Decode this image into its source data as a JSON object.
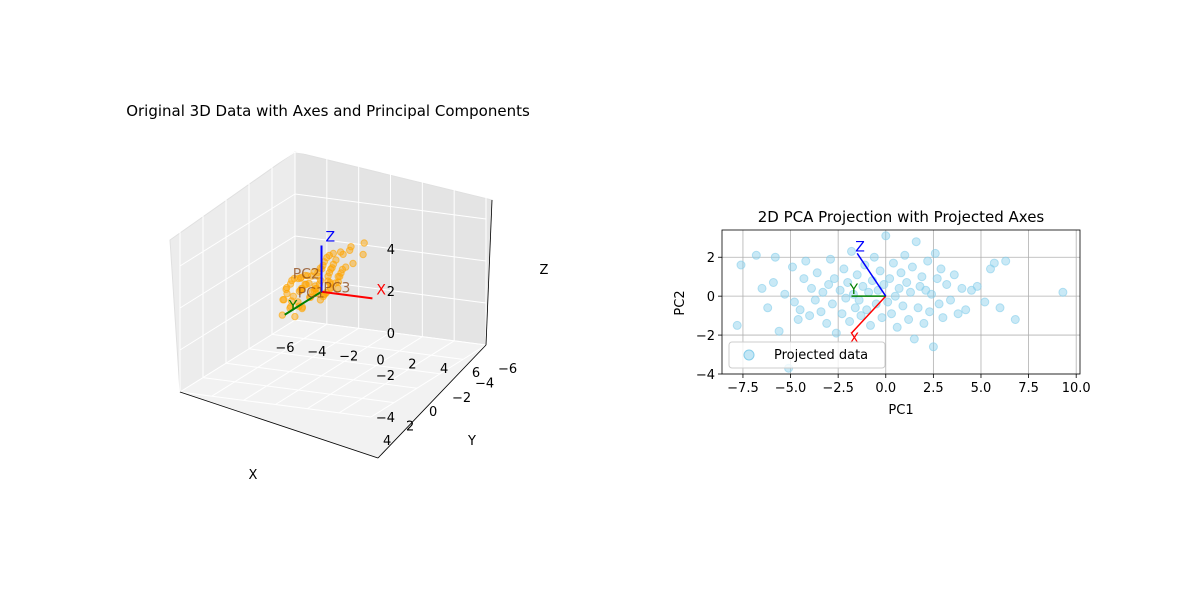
{
  "figure": {
    "background": "#ffffff"
  },
  "chart_data": [
    {
      "type": "scatter",
      "projection": "3d",
      "title": "Original 3D Data with Axes and Principal Components",
      "xlabel": "X",
      "ylabel": "Y",
      "zlabel": "Z",
      "xlim": [
        -6,
        6
      ],
      "ylim": [
        -6,
        4
      ],
      "zlim": [
        -4,
        4
      ],
      "xticks": [
        "−6",
        "−4",
        "−2",
        "0",
        "2",
        "4",
        "6"
      ],
      "yticks": [
        "−6",
        "−4",
        "−2",
        "0",
        "2",
        "4"
      ],
      "zticks": [
        "−4",
        "−2",
        "0",
        "2",
        "4"
      ],
      "grid": true,
      "series": [
        {
          "marker_color": "#ffa500",
          "points": [
            [
              -5.5,
              -4.2,
              -3.1
            ],
            [
              -4.8,
              -3.9,
              -2.6
            ],
            [
              -4.6,
              -3.1,
              -1.9
            ],
            [
              -4.3,
              -2.6,
              -1.7
            ],
            [
              -4.2,
              -3.5,
              -2.8
            ],
            [
              -3.9,
              -2.4,
              -1.3
            ],
            [
              -3.8,
              -3.3,
              -2.2
            ],
            [
              -3.6,
              -1.9,
              -0.9
            ],
            [
              -3.5,
              -2.8,
              -1.8
            ],
            [
              -3.4,
              -2.1,
              -1.5
            ],
            [
              -3.2,
              -1.4,
              -0.6
            ],
            [
              -3.1,
              -2.6,
              -2.0
            ],
            [
              -3.0,
              -1.7,
              -1.1
            ],
            [
              -2.9,
              -2.2,
              -0.4
            ],
            [
              -2.8,
              -1.2,
              -1.4
            ],
            [
              -2.7,
              -2.0,
              -0.8
            ],
            [
              -2.6,
              -0.9,
              -0.2
            ],
            [
              -2.5,
              -1.8,
              -1.6
            ],
            [
              -2.4,
              -1.4,
              -0.7
            ],
            [
              -2.3,
              -0.6,
              0.1
            ],
            [
              -2.2,
              -2.1,
              -1.2
            ],
            [
              -2.1,
              -1.1,
              -0.5
            ],
            [
              -2.0,
              -0.4,
              0.3
            ],
            [
              -1.9,
              -1.6,
              -1.0
            ],
            [
              -1.8,
              -0.8,
              -0.3
            ],
            [
              -1.7,
              -1.9,
              -0.9
            ],
            [
              -1.6,
              -0.2,
              0.4
            ],
            [
              -1.5,
              -1.3,
              -0.6
            ],
            [
              -1.4,
              -0.6,
              0.0
            ],
            [
              -1.3,
              -1.7,
              -1.1
            ],
            [
              -1.2,
              0.1,
              0.6
            ],
            [
              -1.1,
              -0.9,
              -0.4
            ],
            [
              -1.0,
              -0.3,
              0.2
            ],
            [
              -0.9,
              -1.4,
              -0.8
            ],
            [
              -0.8,
              0.3,
              0.8
            ],
            [
              -0.7,
              -0.5,
              -0.1
            ],
            [
              -0.6,
              0.6,
              0.5
            ],
            [
              -0.5,
              -1.0,
              -0.5
            ],
            [
              -0.4,
              0.0,
              0.1
            ],
            [
              -0.3,
              0.8,
              1.0
            ],
            [
              -0.2,
              -0.7,
              -0.3
            ],
            [
              -0.1,
              0.4,
              0.4
            ],
            [
              0.0,
              -0.2,
              -0.2
            ],
            [
              0.1,
              1.0,
              1.1
            ],
            [
              0.2,
              -0.5,
              0.0
            ],
            [
              0.3,
              0.6,
              0.6
            ],
            [
              0.4,
              1.2,
              1.4
            ],
            [
              0.5,
              -0.1,
              0.2
            ],
            [
              0.6,
              0.9,
              0.9
            ],
            [
              0.7,
              0.2,
              0.5
            ],
            [
              0.8,
              1.4,
              1.3
            ],
            [
              0.9,
              0.5,
              0.7
            ],
            [
              1.0,
              1.7,
              1.6
            ],
            [
              1.1,
              0.1,
              0.3
            ],
            [
              1.2,
              1.1,
              1.0
            ],
            [
              1.3,
              1.9,
              1.9
            ],
            [
              1.4,
              0.7,
              0.8
            ],
            [
              1.5,
              1.5,
              1.4
            ],
            [
              1.6,
              2.2,
              2.0
            ],
            [
              1.7,
              0.9,
              1.2
            ],
            [
              1.8,
              1.8,
              1.7
            ],
            [
              1.9,
              2.5,
              2.3
            ],
            [
              2.0,
              1.3,
              1.1
            ],
            [
              2.1,
              2.1,
              2.0
            ],
            [
              2.2,
              2.8,
              2.6
            ],
            [
              2.3,
              1.6,
              1.5
            ],
            [
              2.4,
              2.4,
              2.2
            ],
            [
              2.5,
              3.0,
              2.9
            ],
            [
              2.6,
              1.9,
              1.8
            ],
            [
              2.7,
              2.7,
              2.5
            ],
            [
              2.8,
              3.2,
              3.1
            ],
            [
              2.9,
              2.2,
              2.1
            ],
            [
              3.0,
              2.9,
              2.8
            ],
            [
              3.2,
              3.4,
              3.3
            ],
            [
              3.4,
              2.6,
              2.4
            ],
            [
              3.6,
              3.1,
              3.2
            ],
            [
              3.8,
              3.6,
              3.5
            ],
            [
              4.0,
              2.8,
              2.7
            ],
            [
              4.3,
              3.5,
              3.6
            ],
            [
              4.6,
              3.8,
              3.9
            ],
            [
              5.0,
              3.3,
              3.4
            ],
            [
              5.5,
              3.9,
              4.2
            ]
          ]
        }
      ],
      "annotations": [
        {
          "text": "X",
          "color": "#ff0000"
        },
        {
          "text": "Y",
          "color": "#008000"
        },
        {
          "text": "Z",
          "color": "#0000ff"
        },
        {
          "text": "PC1",
          "color": "#8b4513"
        },
        {
          "text": "PC2",
          "color": "#8b4513"
        },
        {
          "text": "PC3",
          "color": "#8b4513"
        }
      ]
    },
    {
      "type": "scatter",
      "title": "2D PCA Projection with Projected Axes",
      "xlabel": "PC1",
      "ylabel": "PC2",
      "xlim": [
        -8.6,
        10.2
      ],
      "ylim": [
        -4.0,
        3.4
      ],
      "xticks": [
        -7.5,
        -5.0,
        -2.5,
        0.0,
        2.5,
        5.0,
        7.5,
        10.0
      ],
      "xtick_labels": [
        "−7.5",
        "−5.0",
        "−2.5",
        "0.0",
        "2.5",
        "5.0",
        "7.5",
        "10.0"
      ],
      "yticks": [
        -4,
        -2,
        0,
        2
      ],
      "ytick_labels": [
        "−4",
        "−2",
        "0",
        "2"
      ],
      "grid": true,
      "legend": "lower-left",
      "series": [
        {
          "name": "Projected data",
          "color": "#87ceeb",
          "x": [
            -7.8,
            -7.6,
            -6.8,
            -6.5,
            -6.2,
            -5.9,
            -5.8,
            -5.6,
            -5.3,
            -5.1,
            -4.9,
            -4.8,
            -4.6,
            -4.5,
            -4.3,
            -4.2,
            -4.0,
            -3.9,
            -3.7,
            -3.6,
            -3.4,
            -3.3,
            -3.1,
            -3.0,
            -2.9,
            -2.8,
            -2.7,
            -2.6,
            -2.4,
            -2.3,
            -2.2,
            -2.1,
            -2.0,
            -1.9,
            -1.8,
            -1.7,
            -1.6,
            -1.5,
            -1.4,
            -1.3,
            -1.2,
            -1.1,
            -1.0,
            -0.9,
            -0.8,
            -0.7,
            -0.6,
            -0.5,
            -0.4,
            -0.3,
            -0.2,
            -0.1,
            0.0,
            0.1,
            0.2,
            0.3,
            0.4,
            0.5,
            0.6,
            0.7,
            0.8,
            0.9,
            1.0,
            1.1,
            1.2,
            1.3,
            1.4,
            1.5,
            1.6,
            1.7,
            1.8,
            1.9,
            2.0,
            2.1,
            2.2,
            2.3,
            2.4,
            2.5,
            2.6,
            2.7,
            2.8,
            2.9,
            3.0,
            3.2,
            3.4,
            3.6,
            3.8,
            4.0,
            4.2,
            4.5,
            4.8,
            5.2,
            5.5,
            5.7,
            6.0,
            6.3,
            6.8,
            9.3
          ],
          "y": [
            -1.5,
            1.6,
            2.1,
            0.4,
            -0.6,
            0.7,
            2.0,
            -1.8,
            0.1,
            -3.7,
            1.5,
            -0.3,
            -1.2,
            -0.7,
            0.9,
            1.8,
            -1.0,
            0.4,
            -0.2,
            1.2,
            -0.8,
            0.2,
            -1.4,
            0.6,
            1.9,
            -0.4,
            0.9,
            -1.9,
            0.3,
            -0.9,
            1.4,
            -0.1,
            0.7,
            -1.3,
            2.3,
            0.1,
            -0.6,
            1.1,
            -0.2,
            -1.0,
            0.5,
            1.6,
            -0.7,
            0.2,
            -1.5,
            0.8,
            2.0,
            -0.4,
            0.3,
            1.3,
            -1.1,
            0.6,
            3.1,
            -0.3,
            0.9,
            -0.9,
            1.7,
            0.0,
            -1.6,
            0.4,
            1.2,
            -0.5,
            2.1,
            0.7,
            -1.2,
            0.2,
            1.5,
            -2.2,
            2.8,
            -0.6,
            0.5,
            1.0,
            -1.4,
            0.3,
            1.8,
            -0.8,
            0.1,
            -2.6,
            2.2,
            0.9,
            -0.4,
            1.4,
            -1.1,
            0.6,
            -0.2,
            1.1,
            -0.9,
            0.4,
            -0.7,
            0.3,
            0.5,
            -0.3,
            1.4,
            1.7,
            -0.6,
            1.8,
            -1.2,
            0.2
          ]
        }
      ],
      "projected_axes": [
        {
          "label": "X",
          "color": "#ff0000",
          "dx": -1.8,
          "dy": -1.9
        },
        {
          "label": "Y",
          "color": "#008000",
          "dx": -1.8,
          "dy": 0.0
        },
        {
          "label": "Z",
          "color": "#0000ff",
          "dx": -1.5,
          "dy": 2.2
        }
      ]
    }
  ]
}
